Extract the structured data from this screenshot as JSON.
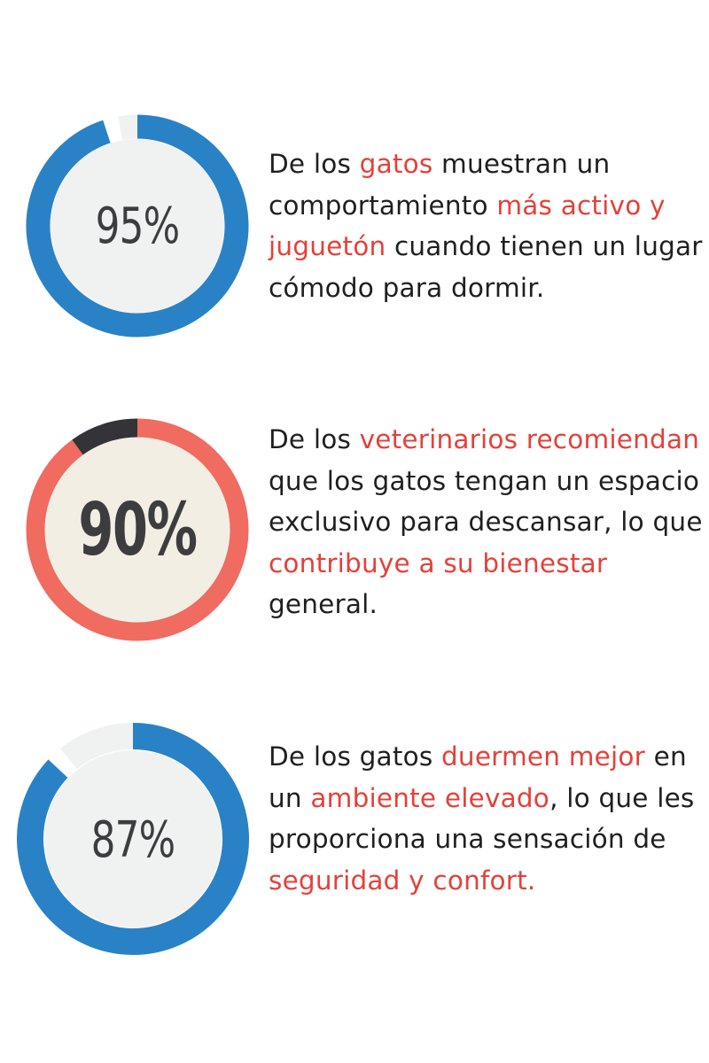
{
  "chart_data": [
    {
      "type": "pie",
      "value": 95,
      "label": "95%",
      "colors": {
        "ring": "#2a82c6",
        "remainder": "#f0f2f2",
        "fill": "#f0f2f2",
        "text": "#3d3d3f"
      },
      "text_segments": [
        {
          "text": "De los ",
          "hl": false
        },
        {
          "text": "gatos",
          "hl": true
        },
        {
          "text": " muestran un comportamiento ",
          "hl": false
        },
        {
          "text": "más activo y juguetón",
          "hl": true
        },
        {
          "text": " cuando tienen un lugar cómodo para dormir.",
          "hl": false
        }
      ]
    },
    {
      "type": "pie",
      "value": 90,
      "label": "90%",
      "colors": {
        "ring": "#f06b60",
        "remainder": "#333338",
        "fill": "#f2eee4",
        "text": "#3d3d3f"
      },
      "text_segments": [
        {
          "text": "De los ",
          "hl": false
        },
        {
          "text": "veterinarios recomiendan",
          "hl": true
        },
        {
          "text": " que los gatos tengan un espacio exclusivo para descansar, lo que ",
          "hl": false
        },
        {
          "text": "contribuye a su bienestar",
          "hl": true
        },
        {
          "text": " general.",
          "hl": false
        }
      ]
    },
    {
      "type": "pie",
      "value": 87,
      "label": "87%",
      "colors": {
        "ring": "#2a82c6",
        "remainder": "#f0f2f2",
        "fill": "#f0f2f2",
        "text": "#3d3d3f"
      },
      "text_segments": [
        {
          "text": "De los gatos ",
          "hl": false
        },
        {
          "text": "duermen mejor",
          "hl": true
        },
        {
          "text": " en un ",
          "hl": false
        },
        {
          "text": "ambiente elevado",
          "hl": true
        },
        {
          "text": ", lo que les proporciona una sensación de ",
          "hl": false
        },
        {
          "text": "seguridad y confort.",
          "hl": true
        }
      ]
    }
  ],
  "highlight_color": "#e4413a"
}
